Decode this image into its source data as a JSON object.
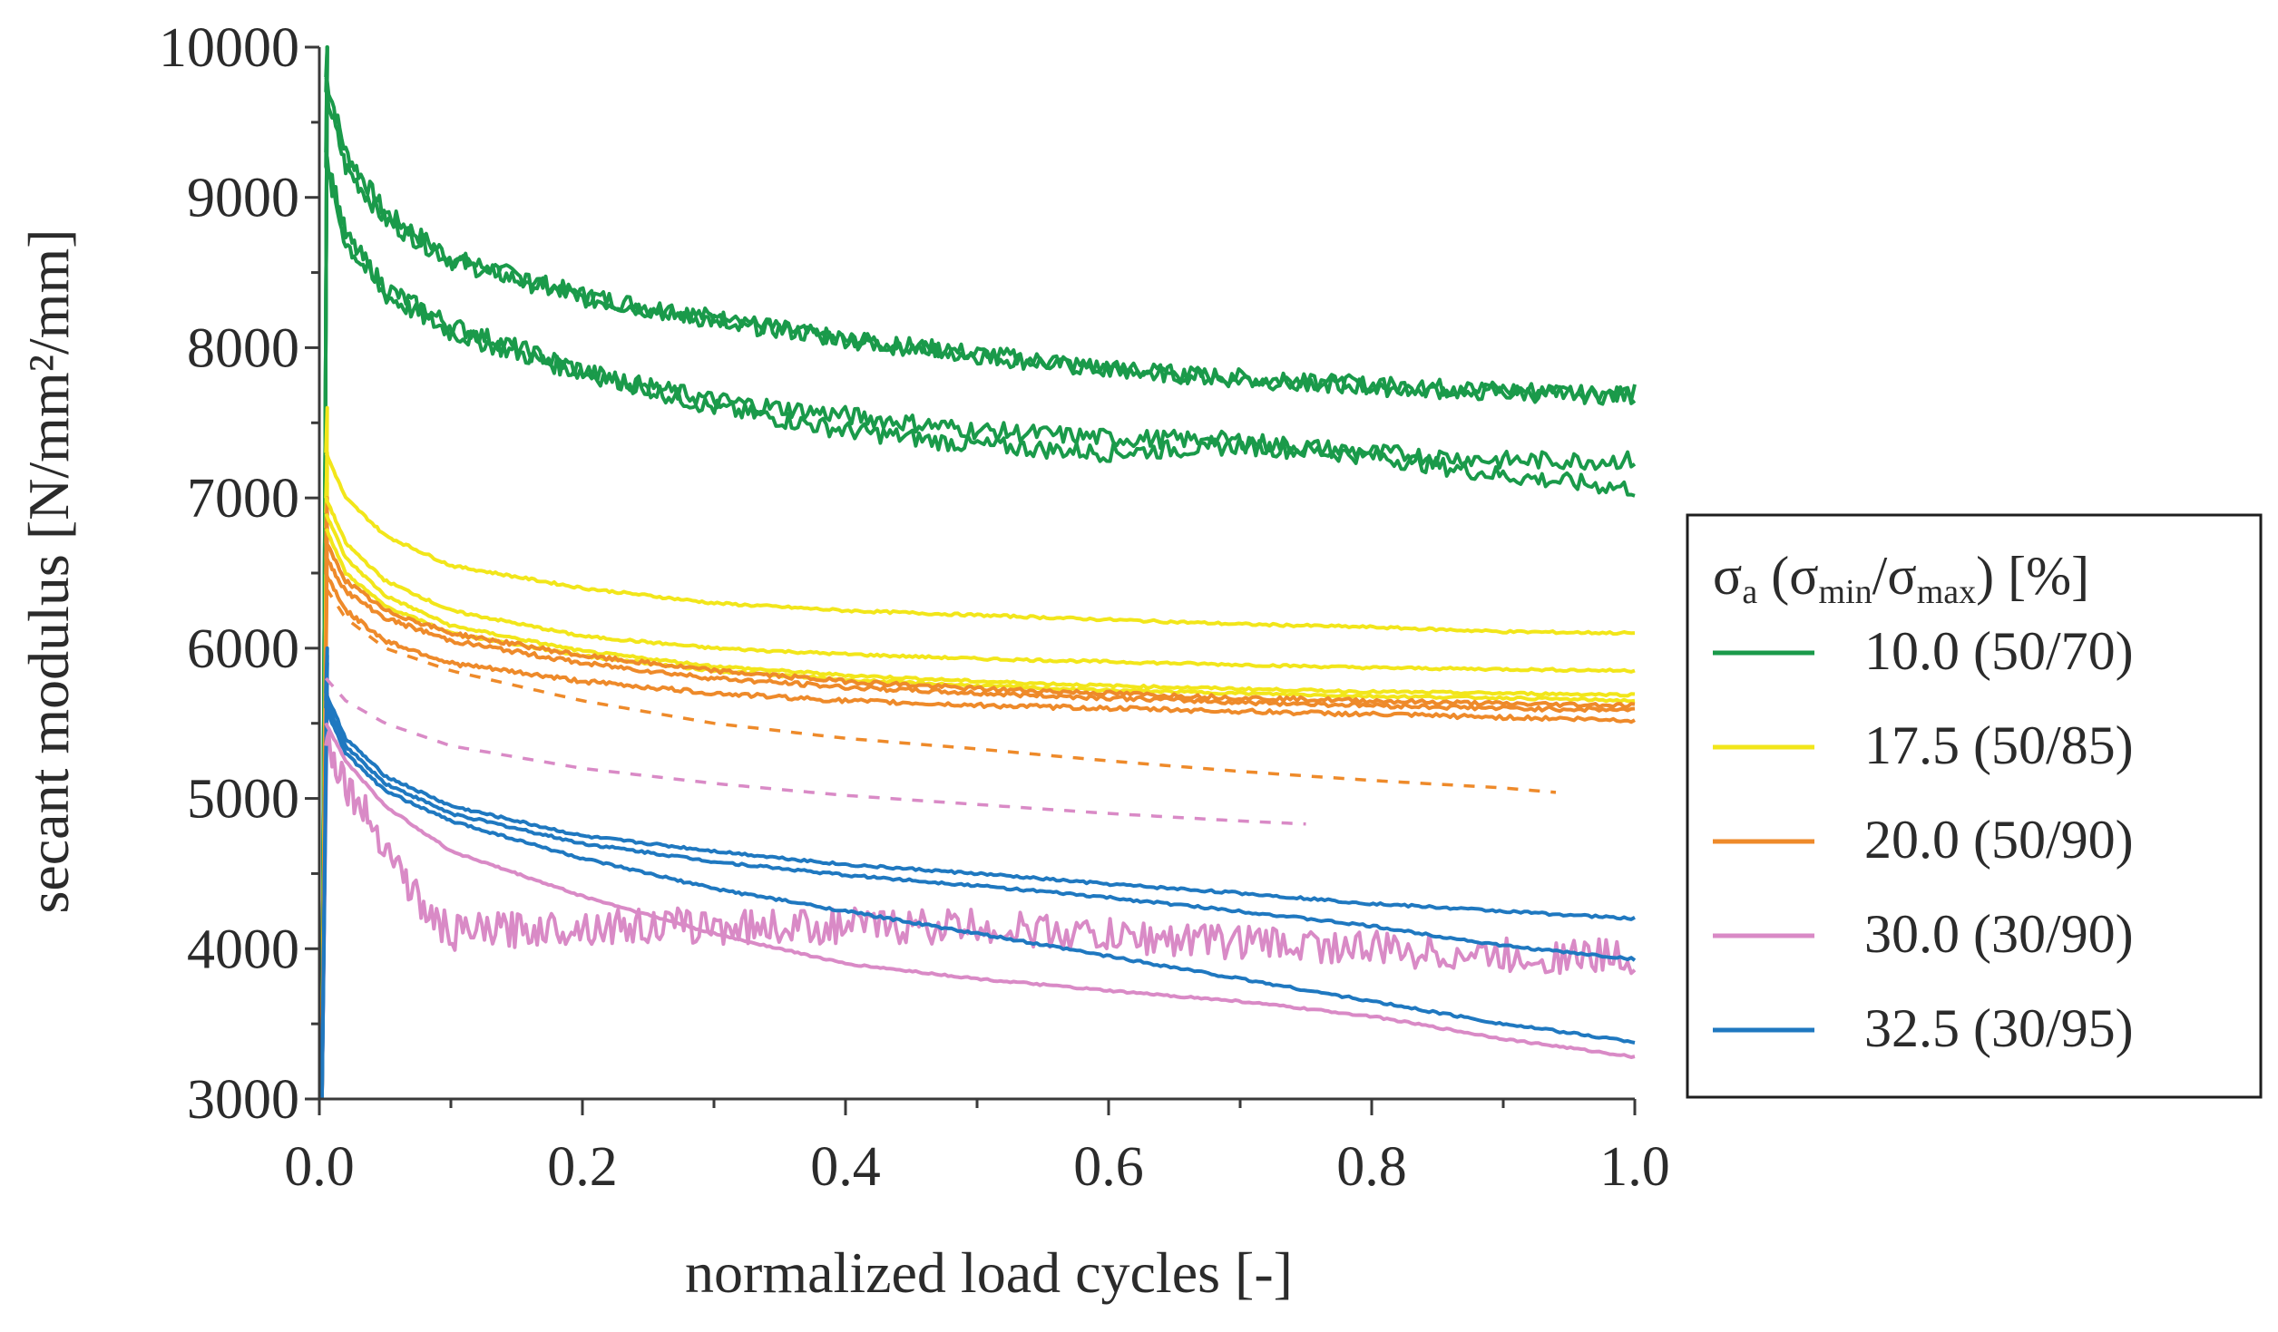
{
  "chart_data": {
    "type": "line",
    "title": "",
    "xlabel": "normalized load cycles [-]",
    "ylabel": "secant modulus [N/mm²/mm]",
    "xlim": [
      0,
      1
    ],
    "ylim": [
      3000,
      10000
    ],
    "x_ticks": [
      "0.0",
      "0.2",
      "0.4",
      "0.6",
      "0.8",
      "1.0"
    ],
    "y_ticks": [
      "3000",
      "4000",
      "5000",
      "6000",
      "7000",
      "8000",
      "9000",
      "10000"
    ],
    "grid": false,
    "legend": {
      "position": "right",
      "title": {
        "sigma": "σ",
        "a": "a",
        "open": "(",
        "min": "min",
        "slash": "/",
        "max": "max",
        "close": ") [%]"
      },
      "entries": [
        {
          "label": "10.0 (50/70)",
          "color": "#1a9a4a"
        },
        {
          "label": "17.5 (50/85)",
          "color": "#f2e61a"
        },
        {
          "label": "20.0 (50/90)",
          "color": "#ee8a2a"
        },
        {
          "label": "30.0 (30/90)",
          "color": "#d98ac6"
        },
        {
          "label": "32.5 (30/95)",
          "color": "#1f78c0"
        }
      ]
    },
    "series": [
      {
        "name": "10.0 (50/70)",
        "group": 0,
        "dash": false,
        "noise": 60,
        "x": [
          0.005,
          0.02,
          0.05,
          0.1,
          0.2,
          0.3,
          0.4,
          0.5,
          0.6,
          0.7,
          0.8,
          0.9,
          1.0
        ],
        "y": [
          9800,
          9300,
          8900,
          8600,
          8350,
          8200,
          8050,
          7950,
          7850,
          7800,
          7750,
          7720,
          7700
        ]
      },
      {
        "name": "10.0 (50/70)",
        "group": 0,
        "dash": false,
        "noise": 60,
        "x": [
          0.005,
          0.02,
          0.05,
          0.1,
          0.2,
          0.3,
          0.4,
          0.5,
          0.6,
          0.7,
          0.8,
          0.9,
          1.0
        ],
        "y": [
          9700,
          9200,
          8850,
          8580,
          8330,
          8180,
          8060,
          7960,
          7860,
          7790,
          7740,
          7700,
          7680
        ]
      },
      {
        "name": "10.0 (50/70)",
        "group": 0,
        "dash": false,
        "noise": 60,
        "x": [
          0.005,
          0.02,
          0.05,
          0.1,
          0.2,
          0.3,
          0.4,
          0.5,
          0.6,
          0.7,
          0.8,
          0.9,
          1.0
        ],
        "y": [
          9300,
          8750,
          8400,
          8150,
          7850,
          7600,
          7450,
          7350,
          7300,
          7350,
          7280,
          7150,
          7060
        ]
      },
      {
        "name": "10.0 (50/70)",
        "group": 0,
        "dash": false,
        "noise": 60,
        "x": [
          0.005,
          0.02,
          0.05,
          0.1,
          0.2,
          0.3,
          0.4,
          0.5,
          0.6,
          0.7,
          0.8,
          0.9,
          1.0
        ],
        "y": [
          9200,
          8700,
          8350,
          8100,
          7830,
          7650,
          7550,
          7450,
          7400,
          7380,
          7300,
          7250,
          7250
        ]
      },
      {
        "name": "17.5 (50/85)",
        "group": 1,
        "dash": false,
        "noise": 8,
        "x": [
          0.005,
          0.02,
          0.05,
          0.1,
          0.2,
          0.3,
          0.4,
          0.5,
          0.6,
          0.7,
          0.8,
          0.9,
          1.0
        ],
        "y": [
          7300,
          7000,
          6750,
          6550,
          6400,
          6300,
          6250,
          6220,
          6190,
          6160,
          6140,
          6110,
          6100
        ]
      },
      {
        "name": "17.5 (50/85)",
        "group": 1,
        "dash": false,
        "noise": 8,
        "x": [
          0.005,
          0.02,
          0.05,
          0.1,
          0.2,
          0.3,
          0.4,
          0.5,
          0.6,
          0.7,
          0.8,
          0.9,
          1.0
        ],
        "y": [
          7000,
          6700,
          6450,
          6250,
          6080,
          6000,
          5960,
          5930,
          5910,
          5890,
          5870,
          5860,
          5850
        ]
      },
      {
        "name": "17.5 (50/85)",
        "group": 1,
        "dash": false,
        "noise": 8,
        "x": [
          0.005,
          0.02,
          0.05,
          0.1,
          0.2,
          0.3,
          0.4,
          0.5,
          0.6,
          0.7,
          0.8,
          0.9,
          1.0
        ],
        "y": [
          6900,
          6600,
          6350,
          6150,
          5980,
          5880,
          5820,
          5780,
          5750,
          5730,
          5710,
          5700,
          5690
        ]
      },
      {
        "name": "17.5 (50/85)",
        "group": 1,
        "dash": false,
        "noise": 8,
        "x": [
          0.005,
          0.02,
          0.05,
          0.1,
          0.2,
          0.3,
          0.4,
          0.5,
          0.6,
          0.7,
          0.8,
          0.9,
          1.0
        ],
        "y": [
          6800,
          6500,
          6280,
          6100,
          5950,
          5850,
          5790,
          5750,
          5720,
          5700,
          5680,
          5670,
          5650
        ]
      },
      {
        "name": "20.0 (50/90)",
        "group": 2,
        "dash": false,
        "noise": 14,
        "x": [
          0.005,
          0.02,
          0.05,
          0.1,
          0.2,
          0.3,
          0.4,
          0.5,
          0.6,
          0.7,
          0.8,
          0.9,
          1.0
        ],
        "y": [
          6700,
          6450,
          6250,
          6100,
          5950,
          5850,
          5780,
          5730,
          5700,
          5670,
          5650,
          5630,
          5620
        ]
      },
      {
        "name": "20.0 (50/90)",
        "group": 2,
        "dash": false,
        "noise": 14,
        "x": [
          0.005,
          0.02,
          0.05,
          0.1,
          0.2,
          0.3,
          0.4,
          0.5,
          0.6,
          0.7,
          0.8,
          0.9,
          1.0
        ],
        "y": [
          6600,
          6380,
          6200,
          6050,
          5900,
          5800,
          5740,
          5700,
          5670,
          5640,
          5620,
          5600,
          5590
        ]
      },
      {
        "name": "20.0 (50/90)",
        "group": 2,
        "dash": false,
        "noise": 14,
        "x": [
          0.005,
          0.02,
          0.05,
          0.1,
          0.2,
          0.3,
          0.4,
          0.5,
          0.6,
          0.7,
          0.8,
          0.9,
          1.0
        ],
        "y": [
          6500,
          6250,
          6050,
          5900,
          5780,
          5700,
          5650,
          5620,
          5600,
          5580,
          5560,
          5540,
          5520
        ]
      },
      {
        "name": "20.0 (50/90)",
        "group": 2,
        "dash": true,
        "noise": 0,
        "x": [
          0.005,
          0.02,
          0.05,
          0.1,
          0.2,
          0.3,
          0.4,
          0.5,
          0.6,
          0.7,
          0.8,
          0.9,
          0.94
        ],
        "y": [
          6400,
          6200,
          6000,
          5850,
          5650,
          5500,
          5400,
          5330,
          5250,
          5180,
          5120,
          5070,
          5040
        ]
      },
      {
        "name": "30.0 (30/90)",
        "group": 3,
        "dash": true,
        "noise": 0,
        "x": [
          0.005,
          0.02,
          0.05,
          0.1,
          0.2,
          0.3,
          0.4,
          0.5,
          0.6,
          0.7,
          0.75
        ],
        "y": [
          5800,
          5650,
          5500,
          5350,
          5200,
          5100,
          5020,
          4960,
          4900,
          4850,
          4830
        ]
      },
      {
        "name": "30.0 (30/90)",
        "group": 3,
        "dash": false,
        "noise": 120,
        "x": [
          0.005,
          0.02,
          0.05,
          0.08,
          0.1,
          0.13,
          0.2,
          0.3,
          0.4,
          0.5,
          0.6,
          0.7,
          0.8,
          0.9,
          1.0
        ],
        "y": [
          5400,
          5100,
          4700,
          4250,
          4100,
          4120,
          4150,
          4150,
          4150,
          4150,
          4080,
          4050,
          4000,
          3950,
          3950
        ]
      },
      {
        "name": "30.0 (30/90)",
        "group": 3,
        "dash": false,
        "noise": 6,
        "x": [
          0.005,
          0.02,
          0.05,
          0.1,
          0.2,
          0.3,
          0.4,
          0.5,
          0.6,
          0.7,
          0.8,
          0.9,
          1.0
        ],
        "y": [
          5500,
          5250,
          4950,
          4650,
          4350,
          4100,
          3900,
          3800,
          3720,
          3650,
          3550,
          3400,
          3280
        ]
      },
      {
        "name": "32.5 (30/95)",
        "group": 4,
        "dash": false,
        "noise": 8,
        "x": [
          0.005,
          0.02,
          0.05,
          0.1,
          0.2,
          0.3,
          0.4,
          0.5,
          0.6,
          0.7,
          0.8,
          0.9,
          1.0
        ],
        "y": [
          5700,
          5400,
          5150,
          4950,
          4750,
          4650,
          4560,
          4500,
          4430,
          4370,
          4300,
          4250,
          4200
        ]
      },
      {
        "name": "32.5 (30/95)",
        "group": 4,
        "dash": false,
        "noise": 8,
        "x": [
          0.005,
          0.02,
          0.05,
          0.1,
          0.2,
          0.3,
          0.4,
          0.5,
          0.6,
          0.7,
          0.8,
          0.9,
          1.0
        ],
        "y": [
          5650,
          5350,
          5100,
          4900,
          4700,
          4580,
          4490,
          4420,
          4340,
          4250,
          4150,
          4020,
          3930
        ]
      },
      {
        "name": "32.5 (30/95)",
        "group": 4,
        "dash": false,
        "noise": 8,
        "x": [
          0.005,
          0.02,
          0.05,
          0.1,
          0.2,
          0.3,
          0.4,
          0.5,
          0.6,
          0.7,
          0.8,
          0.9,
          1.0
        ],
        "y": [
          5600,
          5300,
          5050,
          4850,
          4600,
          4400,
          4250,
          4100,
          3950,
          3800,
          3650,
          3500,
          3380
        ]
      }
    ]
  }
}
